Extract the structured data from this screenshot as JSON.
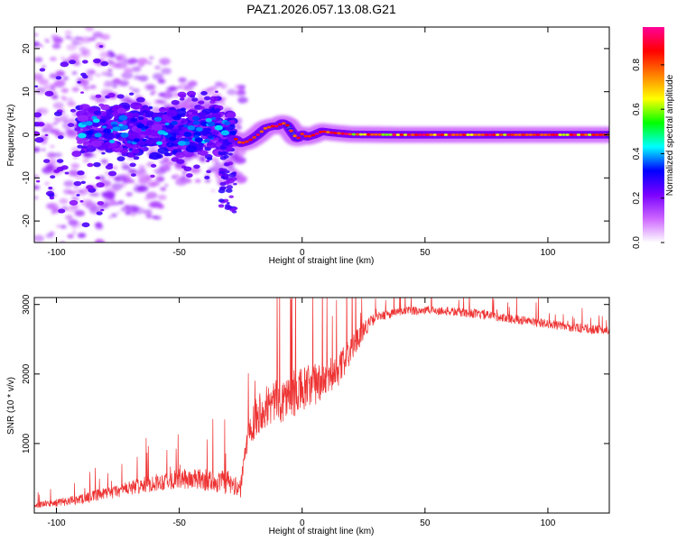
{
  "title": "PAZ1.2026.057.13.08.G21",
  "chart_data": [
    {
      "type": "heatmap",
      "name": "spectrogram",
      "xlabel": "Height of straight line (km)",
      "ylabel": "Frequency (Hz)",
      "xlim": [
        -109,
        125
      ],
      "ylim": [
        -25,
        25
      ],
      "xticks": [
        -100,
        -50,
        0,
        50,
        100
      ],
      "xtick_labels": [
        "-100",
        "-50",
        "0",
        "50",
        "100"
      ],
      "yticks": [
        -20,
        -10,
        0,
        10,
        20
      ],
      "ytick_labels": [
        "-20",
        "-10",
        "0",
        "10",
        "20"
      ],
      "colorbar": {
        "label": "Normalized spectral amplitude",
        "range": [
          0,
          0.97
        ],
        "ticks": [
          0,
          0.2,
          0.4,
          0.6,
          0.8
        ],
        "tick_labels": [
          "0.0",
          "0.2",
          "0.4",
          "0.6",
          "0.8"
        ],
        "colors": [
          "#ffffff",
          "#cc66ff",
          "#7a00ff",
          "#0000ff",
          "#00ffff",
          "#00ff00",
          "#ffff00",
          "#ff8000",
          "#ff0000",
          "#ff0099"
        ]
      },
      "ridge": {
        "x": [
          -27,
          -25,
          -22,
          -20,
          -18,
          -15,
          -12,
          -10,
          -8,
          -6,
          -4,
          -2,
          0,
          2,
          5,
          8,
          12,
          20,
          40,
          60,
          80,
          100,
          125
        ],
        "y": [
          -1.0,
          -2.0,
          -1.5,
          -0.8,
          0.0,
          1.5,
          2.0,
          2.0,
          2.8,
          2.2,
          0.5,
          -1.0,
          0.2,
          -0.5,
          0.0,
          0.8,
          0.5,
          0.1,
          0.0,
          0.0,
          0.0,
          0.0,
          0.0
        ]
      }
    },
    {
      "type": "line",
      "name": "snr",
      "xlabel": "Height of straight line (km)",
      "ylabel": "SNR (10 * v/v)",
      "xlim": [
        -109,
        125
      ],
      "ylim": [
        0,
        3100
      ],
      "xticks": [
        -100,
        -50,
        0,
        50,
        100
      ],
      "xtick_labels": [
        "-100",
        "-50",
        "0",
        "50",
        "100"
      ],
      "yticks": [
        1000,
        2000,
        3000
      ],
      "ytick_labels": [
        "1000",
        "2000",
        "3000"
      ],
      "color": "#ee3333",
      "envelope": {
        "x": [
          -109,
          -100,
          -90,
          -80,
          -70,
          -60,
          -50,
          -40,
          -30,
          -25,
          -23,
          -21,
          -18,
          -15,
          -10,
          -5,
          0,
          5,
          10,
          15,
          20,
          25,
          30,
          40,
          50,
          60,
          70,
          80,
          90,
          100,
          110,
          125
        ],
        "y": [
          100,
          130,
          180,
          250,
          330,
          400,
          450,
          430,
          380,
          300,
          900,
          1200,
          1350,
          1450,
          1500,
          1600,
          1650,
          1750,
          1850,
          2000,
          2300,
          2600,
          2800,
          2880,
          2900,
          2880,
          2850,
          2800,
          2750,
          2700,
          2650,
          2600
        ]
      },
      "noise_amplitude": {
        "x": [
          -109,
          -60,
          -30,
          -25,
          -20,
          0,
          20,
          30,
          125
        ],
        "y": [
          80,
          250,
          350,
          250,
          600,
          700,
          400,
          130,
          130
        ]
      }
    }
  ]
}
